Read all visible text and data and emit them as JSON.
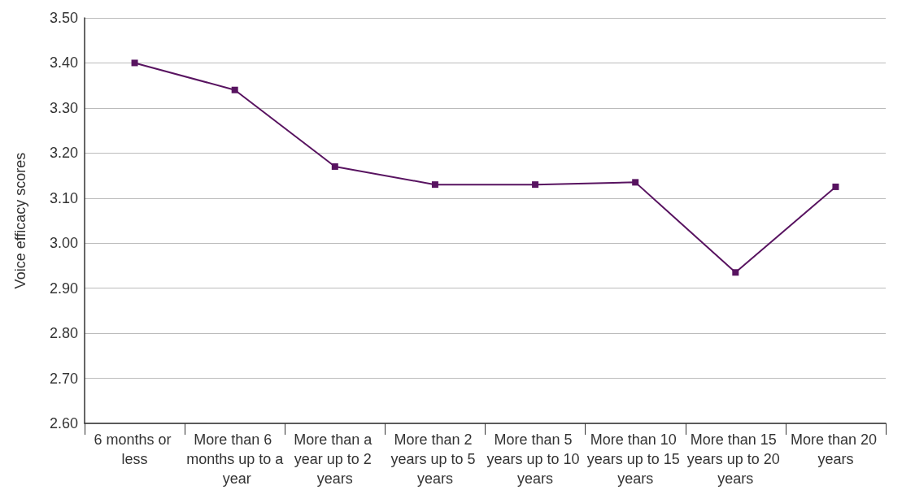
{
  "chart_data": {
    "type": "line",
    "ylabel": "Voice efficacy scores",
    "categories": [
      "6 months or less",
      "More than 6 months up to a year",
      "More than a year up to 2 years",
      "More than 2 years up to 5 years",
      "More than 5 years up to 10 years",
      "More than 10 years up to 15 years",
      "More than 15 years up to 20 years",
      "More than 20 years"
    ],
    "series": [
      {
        "color": "#581360",
        "values": [
          3.4,
          3.34,
          3.17,
          3.13,
          3.13,
          3.135,
          2.935,
          3.125
        ]
      }
    ],
    "ylim": [
      2.6,
      3.5
    ],
    "yticks": [
      {
        "value": 2.6,
        "label": "2.60"
      },
      {
        "value": 2.7,
        "label": "2.70"
      },
      {
        "value": 2.8,
        "label": "2.80"
      },
      {
        "value": 2.9,
        "label": "2.90"
      },
      {
        "value": 3.0,
        "label": "3.00"
      },
      {
        "value": 3.1,
        "label": "3.10"
      },
      {
        "value": 3.2,
        "label": "3.20"
      },
      {
        "value": 3.3,
        "label": "3.30"
      },
      {
        "value": 3.4,
        "label": "3.40"
      },
      {
        "value": 3.5,
        "label": "3.50"
      }
    ],
    "grid": "y",
    "marker": "square",
    "line_style": "solid"
  }
}
